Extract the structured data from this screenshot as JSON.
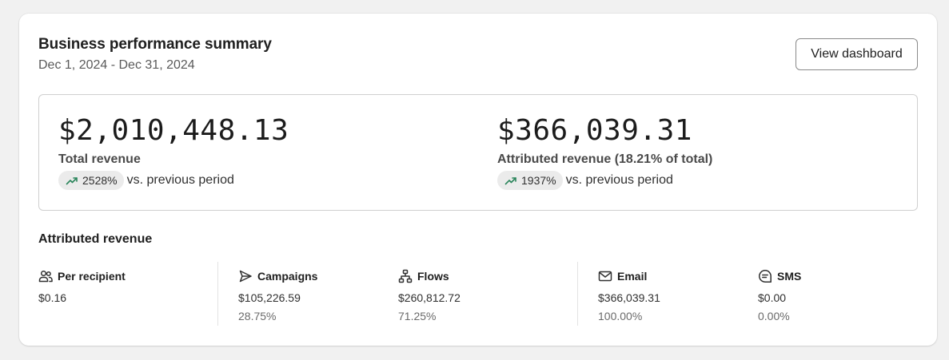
{
  "header": {
    "title": "Business performance summary",
    "date_range": "Dec 1, 2024 - Dec 31, 2024",
    "view_button_label": "View dashboard"
  },
  "summary": {
    "total": {
      "value": "$2,010,448.13",
      "label": "Total revenue",
      "change": "2528%",
      "change_suffix": "vs. previous period",
      "trend_icon": "trend-up-icon"
    },
    "attributed": {
      "value": "$366,039.31",
      "label": "Attributed revenue (18.21% of total)",
      "change": "1937%",
      "change_suffix": "vs. previous period",
      "trend_icon": "trend-up-icon"
    }
  },
  "attributed_section": {
    "title": "Attributed revenue",
    "stats": [
      {
        "label": "Per recipient",
        "value": "$0.16",
        "pct": "",
        "icon": "people-icon"
      },
      {
        "label": "Campaigns",
        "value": "$105,226.59",
        "pct": "28.75%",
        "icon": "send-icon"
      },
      {
        "label": "Flows",
        "value": "$260,812.72",
        "pct": "71.25%",
        "icon": "flow-icon"
      },
      {
        "label": "Email",
        "value": "$366,039.31",
        "pct": "100.00%",
        "icon": "email-icon"
      },
      {
        "label": "SMS",
        "value": "$0.00",
        "pct": "0.00%",
        "icon": "sms-icon"
      }
    ]
  },
  "colors": {
    "trend_up": "#29845a",
    "pill_bg": "#ebebeb",
    "border": "#cfcfcf"
  }
}
